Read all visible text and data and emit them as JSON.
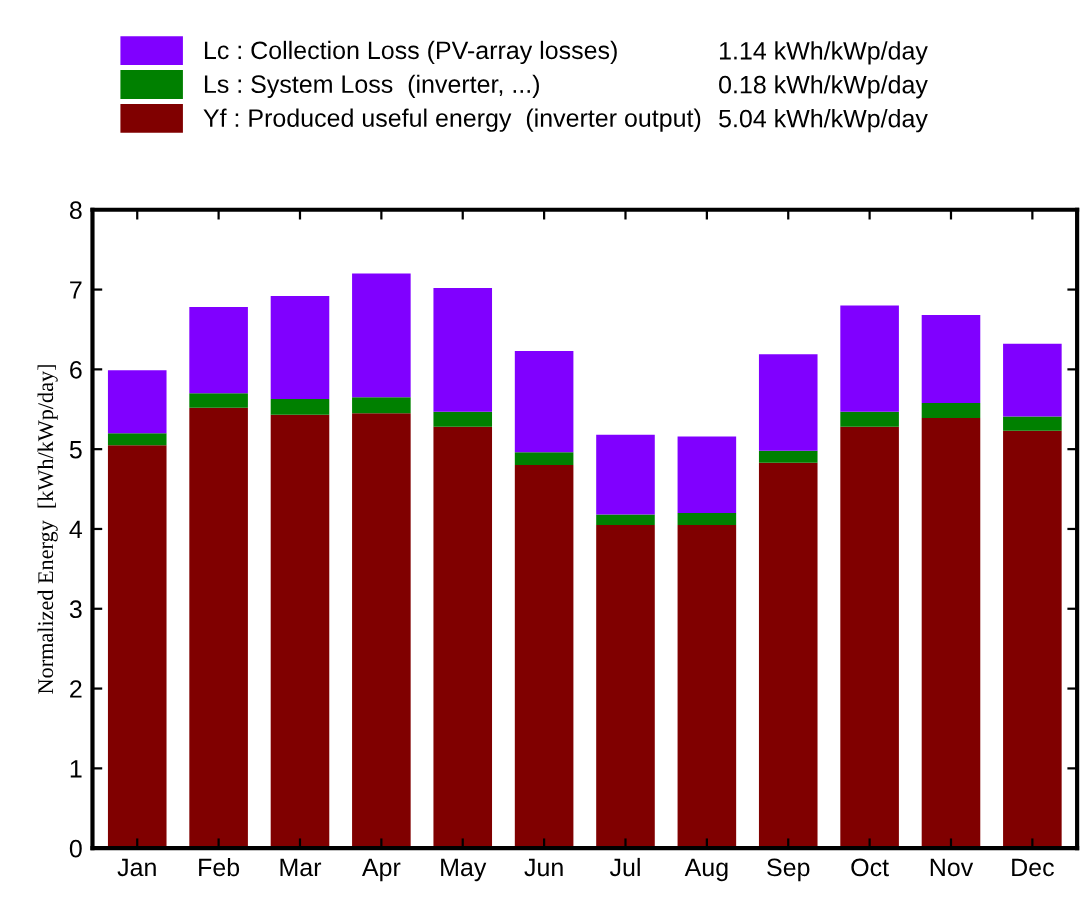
{
  "chart_data": {
    "type": "bar",
    "stacked": true,
    "ylabel": "Normalized Energy  [kWh/kWp/day]",
    "categories": [
      "Jan",
      "Feb",
      "Mar",
      "Apr",
      "May",
      "Jun",
      "Jul",
      "Aug",
      "Sep",
      "Oct",
      "Nov",
      "Dec"
    ],
    "series": [
      {
        "name": "Yf : Produced useful energy  (inverter output)",
        "color": "#800000",
        "values": [
          5.05,
          5.52,
          5.43,
          5.45,
          5.28,
          4.8,
          4.05,
          4.05,
          4.83,
          5.28,
          5.39,
          5.23
        ]
      },
      {
        "name": "Ls : System Loss  (inverter, ...)",
        "color": "#008000",
        "values": [
          0.15,
          0.18,
          0.2,
          0.2,
          0.19,
          0.16,
          0.13,
          0.15,
          0.15,
          0.19,
          0.19,
          0.18
        ]
      },
      {
        "name": "Lc : Collection Loss (PV-array losses)",
        "color": "#8000ff",
        "values": [
          0.79,
          1.08,
          1.29,
          1.55,
          1.55,
          1.27,
          1.0,
          0.96,
          1.21,
          1.33,
          1.1,
          0.91
        ]
      }
    ],
    "annotations": [
      "5.04 kWh/kWp/day",
      "0.18 kWh/kWp/day",
      "1.14 kWh/kWp/day"
    ],
    "ylim": [
      0,
      8
    ],
    "yticks": [
      0,
      1,
      2,
      3,
      4,
      5,
      6,
      7,
      8
    ],
    "grid": false,
    "legend": "top"
  }
}
